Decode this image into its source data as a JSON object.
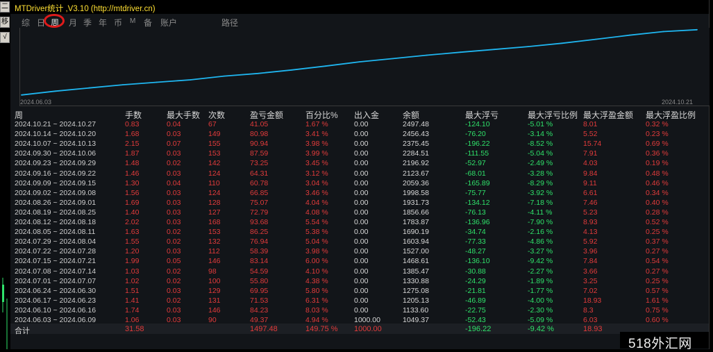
{
  "app_title": "MTDriver统计 ,V3.10 (http://mtdriver.cn)",
  "left_buttons": [
    "二",
    "移",
    "√"
  ],
  "tabs": [
    "综",
    "日",
    "周",
    "月",
    "季",
    "年",
    "币",
    "M",
    "备",
    "账户",
    "路径"
  ],
  "active_tab": "周",
  "chart": {
    "x_start_label": "2024.06.03",
    "x_end_label": "2024.10.21",
    "line_color": "#1fb6f0"
  },
  "chart_data": {
    "type": "line",
    "x": [
      "2024.06.03",
      "2024.06.10",
      "2024.06.17",
      "2024.06.24",
      "2024.07.01",
      "2024.07.08",
      "2024.07.15",
      "2024.07.22",
      "2024.07.29",
      "2024.08.05",
      "2024.08.12",
      "2024.08.19",
      "2024.08.26",
      "2024.09.02",
      "2024.09.09",
      "2024.09.16",
      "2024.09.23",
      "2024.09.30",
      "2024.10.07",
      "2024.10.14",
      "2024.10.21"
    ],
    "series": [
      {
        "values": [
          1049.37,
          1133.6,
          1205.13,
          1275.08,
          1330.88,
          1385.47,
          1468.61,
          1527.0,
          1603.94,
          1690.19,
          1783.87,
          1856.66,
          1931.73,
          1998.58,
          2059.36,
          2123.67,
          2196.92,
          2284.51,
          2375.45,
          2456.43,
          2497.48
        ]
      }
    ]
  },
  "headers": [
    "周",
    "手数",
    "最大手数",
    "次数",
    "盈亏金额",
    "百分比%",
    "出入金",
    "余额",
    "最大浮亏",
    "最大浮亏比例",
    "最大浮盈金额",
    "最大浮盈比例"
  ],
  "rows": [
    [
      "2024.10.21 ~ 2024.10.27",
      "0.83",
      "0.04",
      "67",
      "41.05",
      "1.67 %",
      "0.00",
      "2497.48",
      "-124.10",
      "-5.01 %",
      "8.01",
      "0.32 %"
    ],
    [
      "2024.10.14 ~ 2024.10.20",
      "1.68",
      "0.03",
      "149",
      "80.98",
      "3.41 %",
      "0.00",
      "2456.43",
      "-76.20",
      "-3.14 %",
      "5.52",
      "0.23 %"
    ],
    [
      "2024.10.07 ~ 2024.10.13",
      "2.15",
      "0.07",
      "155",
      "90.94",
      "3.98 %",
      "0.00",
      "2375.45",
      "-196.22",
      "-8.52 %",
      "15.74",
      "0.69 %"
    ],
    [
      "2024.09.30 ~ 2024.10.06",
      "1.87",
      "0.03",
      "153",
      "87.59",
      "3.99 %",
      "0.00",
      "2284.51",
      "-111.55",
      "-5.04 %",
      "7.91",
      "0.36 %"
    ],
    [
      "2024.09.23 ~ 2024.09.29",
      "1.48",
      "0.02",
      "142",
      "73.25",
      "3.45 %",
      "0.00",
      "2196.92",
      "-52.97",
      "-2.49 %",
      "4.03",
      "0.19 %"
    ],
    [
      "2024.09.16 ~ 2024.09.22",
      "1.46",
      "0.03",
      "124",
      "64.31",
      "3.12 %",
      "0.00",
      "2123.67",
      "-68.01",
      "-3.28 %",
      "9.84",
      "0.48 %"
    ],
    [
      "2024.09.09 ~ 2024.09.15",
      "1.30",
      "0.04",
      "110",
      "60.78",
      "3.04 %",
      "0.00",
      "2059.36",
      "-165.89",
      "-8.29 %",
      "9.11",
      "0.46 %"
    ],
    [
      "2024.09.02 ~ 2024.09.08",
      "1.56",
      "0.03",
      "124",
      "66.85",
      "3.46 %",
      "0.00",
      "1998.58",
      "-75.77",
      "-3.92 %",
      "6.61",
      "0.34 %"
    ],
    [
      "2024.08.26 ~ 2024.09.01",
      "1.69",
      "0.03",
      "128",
      "75.07",
      "4.04 %",
      "0.00",
      "1931.73",
      "-134.12",
      "-7.18 %",
      "7.46",
      "0.40 %"
    ],
    [
      "2024.08.19 ~ 2024.08.25",
      "1.40",
      "0.03",
      "127",
      "72.79",
      "4.08 %",
      "0.00",
      "1856.66",
      "-76.13",
      "-4.11 %",
      "5.23",
      "0.28 %"
    ],
    [
      "2024.08.12 ~ 2024.08.18",
      "2.02",
      "0.03",
      "168",
      "93.68",
      "5.54 %",
      "0.00",
      "1783.87",
      "-136.96",
      "-7.90 %",
      "8.93",
      "0.52 %"
    ],
    [
      "2024.08.05 ~ 2024.08.11",
      "1.63",
      "0.02",
      "153",
      "86.25",
      "5.38 %",
      "0.00",
      "1690.19",
      "-34.74",
      "-2.16 %",
      "4.13",
      "0.25 %"
    ],
    [
      "2024.07.29 ~ 2024.08.04",
      "1.55",
      "0.02",
      "132",
      "76.94",
      "5.04 %",
      "0.00",
      "1603.94",
      "-77.33",
      "-4.86 %",
      "5.92",
      "0.37 %"
    ],
    [
      "2024.07.22 ~ 2024.07.28",
      "1.20",
      "0.03",
      "112",
      "58.39",
      "3.98 %",
      "0.00",
      "1527.00",
      "-48.27",
      "-3.27 %",
      "3.96",
      "0.27 %"
    ],
    [
      "2024.07.15 ~ 2024.07.21",
      "1.99",
      "0.05",
      "146",
      "83.14",
      "6.00 %",
      "0.00",
      "1468.61",
      "-136.10",
      "-9.42 %",
      "7.84",
      "0.54 %"
    ],
    [
      "2024.07.08 ~ 2024.07.14",
      "1.03",
      "0.02",
      "98",
      "54.59",
      "4.10 %",
      "0.00",
      "1385.47",
      "-30.88",
      "-2.27 %",
      "3.66",
      "0.27 %"
    ],
    [
      "2024.07.01 ~ 2024.07.07",
      "1.02",
      "0.02",
      "100",
      "55.80",
      "4.38 %",
      "0.00",
      "1330.88",
      "-24.29",
      "-1.89 %",
      "3.25",
      "0.25 %"
    ],
    [
      "2024.06.24 ~ 2024.06.30",
      "1.51",
      "0.03",
      "129",
      "69.95",
      "5.80 %",
      "0.00",
      "1275.08",
      "-21.81",
      "-1.77 %",
      "7.02",
      "0.57 %"
    ],
    [
      "2024.06.17 ~ 2024.06.23",
      "1.41",
      "0.02",
      "131",
      "71.53",
      "6.31 %",
      "0.00",
      "1205.13",
      "-46.89",
      "-4.00 %",
      "18.93",
      "1.61 %"
    ],
    [
      "2024.06.10 ~ 2024.06.16",
      "1.74",
      "0.03",
      "146",
      "84.23",
      "8.03 %",
      "0.00",
      "1133.60",
      "-22.75",
      "-2.30 %",
      "8.3",
      "0.75 %"
    ],
    [
      "2024.06.03 ~ 2024.06.09",
      "1.06",
      "0.03",
      "90",
      "49.37",
      "4.94 %",
      "1000.00",
      "1049.37",
      "-52.43",
      "-5.09 %",
      "6.03",
      "0.60 %"
    ]
  ],
  "total": [
    "合计",
    "31.58",
    "",
    "",
    "1497.48",
    "149.75 %",
    "1000.00",
    "",
    "-196.22",
    "-9.42 %",
    "18.93",
    ""
  ],
  "watermark": "518外汇网"
}
